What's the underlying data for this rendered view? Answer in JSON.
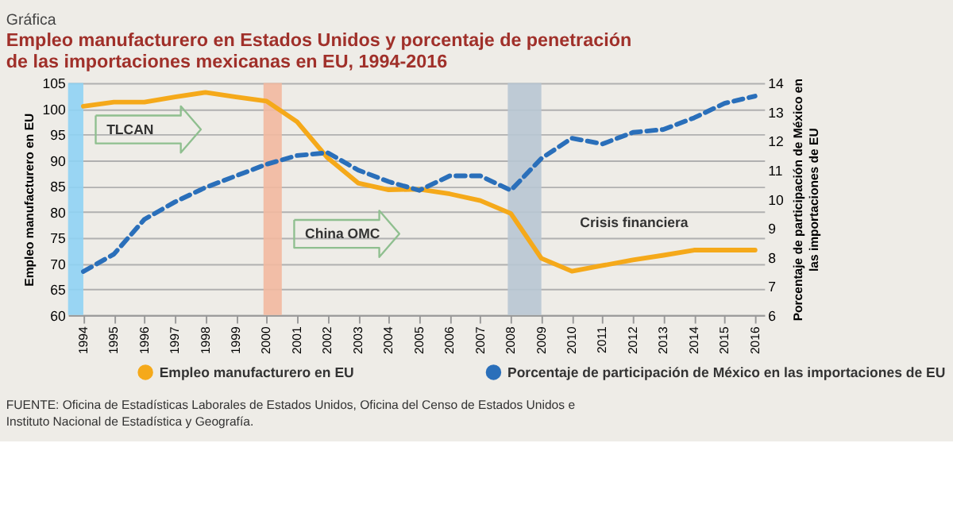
{
  "chart_data": {
    "type": "line",
    "title": "Gráfica",
    "subtitle": "Empleo manufacturero en Estados Unidos y porcentaje de penetración de las importaciones mexicanas en EU, 1994-2016",
    "ylabel": "Empleo manufacturero en EU",
    "y2label": "Porcentaje de participación de México en las importaciones de EU",
    "x": [
      1994,
      1995,
      1996,
      1997,
      1998,
      1999,
      2000,
      2001,
      2002,
      2003,
      2004,
      2005,
      2006,
      2007,
      2008,
      2009,
      2010,
      2011,
      2012,
      2013,
      2014,
      2015,
      2016
    ],
    "series": [
      {
        "name": "Empleo manufacturero en EU",
        "color": "#f5a91a",
        "line_style": "solid",
        "values": [
          100.5,
          101.3,
          101.3,
          102.3,
          103.2,
          102.3,
          101.5,
          97.5,
          90.5,
          85.6,
          84.3,
          84.4,
          83.5,
          82.2,
          79.7,
          71,
          68.5,
          69.6,
          70.7,
          71.6,
          72.6,
          72.6,
          72.6
        ]
      },
      {
        "name": "Porcentaje de participación de México en las importaciones de EU",
        "color": "#2a6fba",
        "line_style": "dashed",
        "axis": "y2",
        "values": [
          7.5,
          8.1,
          9.3,
          9.9,
          10.4,
          10.8,
          11.2,
          11.5,
          11.6,
          11.0,
          10.6,
          10.3,
          10.8,
          10.8,
          10.3,
          11.4,
          12.1,
          11.9,
          12.3,
          12.4,
          12.8,
          13.3,
          13.55
        ]
      }
    ],
    "xlim": [
      1993.5,
      2016.3
    ],
    "xticks": [
      1994,
      1995,
      1996,
      1997,
      1998,
      1999,
      2000,
      2001,
      2002,
      2003,
      2004,
      2005,
      2006,
      2007,
      2008,
      2009,
      2010,
      2011,
      2012,
      2013,
      2014,
      2015,
      2016
    ],
    "ylim": [
      60,
      105
    ],
    "yticks": [
      60,
      65,
      70,
      75,
      80,
      85,
      90,
      95,
      100,
      105
    ],
    "y2lim": [
      6,
      14
    ],
    "y2ticks": [
      6,
      7,
      8,
      9,
      10,
      11,
      12,
      13,
      14
    ],
    "bands": [
      {
        "axis": "x",
        "from": 1993.5,
        "to": 1994,
        "color": "#8fd3f4",
        "label": "TLCAN"
      },
      {
        "axis": "x",
        "from": 1999.9,
        "to": 2000.5,
        "color": "#f2b9a0",
        "label": "China OMC"
      },
      {
        "axis": "x",
        "from": 2007.9,
        "to": 2009.0,
        "color": "#b8c7d3",
        "label": "Crisis financiera"
      }
    ],
    "annotations": [
      "FUENTE: Oficina de Estadísticas Laborales de Estados Unidos, Oficina del Censo de Estados Unidos e Instituto Nacional de Estadística y Geografía."
    ],
    "grid": "y",
    "legend": "bottom"
  }
}
